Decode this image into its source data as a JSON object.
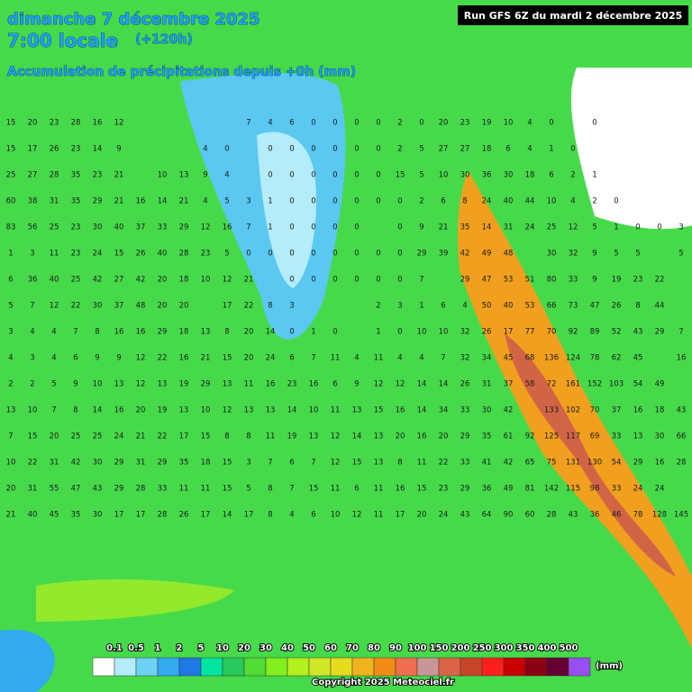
{
  "header": {
    "date": "dimanche 7 décembre 2025",
    "time": "7:00 locale",
    "lead": "(+120h)",
    "subtitle": "Accumulation de précipitations depuis +0h (mm)",
    "run": "Run GFS 6Z du mardi 2 décembre 2025"
  },
  "legend": {
    "labels": [
      "0.1",
      "0.5",
      "1",
      "2",
      "5",
      "10",
      "20",
      "30",
      "40",
      "50",
      "60",
      "70",
      "80",
      "90",
      "100",
      "150",
      "200",
      "250",
      "300",
      "350",
      "400",
      "500"
    ],
    "colors": [
      "#ffffff",
      "#b4ecfa",
      "#6ed2f5",
      "#32aaf0",
      "#1e78e6",
      "#00e6a0",
      "#28c85a",
      "#50dc32",
      "#82f01e",
      "#b4f01e",
      "#d2e628",
      "#e6dc1e",
      "#f0b41e",
      "#f08c14",
      "#f06e50",
      "#c89696",
      "#dc6446",
      "#c84628",
      "#ff1e1e",
      "#c80000",
      "#8c0014",
      "#640032",
      "#9650f0"
    ],
    "unit": "(mm)"
  },
  "grid": {
    "rows": [
      [
        15,
        20,
        23,
        28,
        16,
        12,
        null,
        null,
        null,
        null,
        null,
        7,
        4,
        6,
        0,
        0,
        0,
        0,
        2,
        0,
        20,
        23,
        19,
        10,
        4,
        0,
        null,
        0,
        null,
        null,
        null,
        null
      ],
      [
        15,
        17,
        26,
        23,
        14,
        9,
        null,
        null,
        null,
        4,
        0,
        null,
        0,
        0,
        0,
        0,
        0,
        0,
        2,
        5,
        27,
        27,
        18,
        6,
        4,
        1,
        0,
        null,
        null,
        null,
        null,
        null
      ],
      [
        25,
        27,
        28,
        35,
        23,
        21,
        null,
        10,
        13,
        9,
        4,
        null,
        0,
        0,
        0,
        0,
        0,
        0,
        15,
        5,
        10,
        30,
        36,
        30,
        18,
        6,
        2,
        1,
        null,
        null,
        null,
        null
      ],
      [
        60,
        38,
        31,
        35,
        29,
        21,
        16,
        14,
        21,
        4,
        5,
        3,
        1,
        0,
        0,
        0,
        0,
        0,
        0,
        2,
        6,
        8,
        24,
        40,
        44,
        10,
        4,
        2,
        0,
        null,
        null,
        null
      ],
      [
        83,
        56,
        25,
        23,
        30,
        40,
        37,
        33,
        29,
        12,
        16,
        7,
        1,
        0,
        0,
        0,
        0,
        null,
        0,
        9,
        21,
        35,
        14,
        31,
        24,
        25,
        12,
        5,
        1,
        0,
        0,
        3
      ],
      [
        1,
        3,
        11,
        23,
        24,
        15,
        26,
        40,
        28,
        23,
        5,
        0,
        0,
        0,
        0,
        0,
        0,
        0,
        0,
        29,
        39,
        42,
        49,
        48,
        null,
        30,
        32,
        9,
        5,
        5,
        null,
        5
      ],
      [
        6,
        36,
        40,
        25,
        42,
        27,
        42,
        20,
        18,
        10,
        12,
        21,
        null,
        0,
        0,
        0,
        0,
        0,
        0,
        7,
        null,
        29,
        47,
        53,
        51,
        80,
        33,
        9,
        19,
        23,
        22,
        null
      ],
      [
        5,
        7,
        12,
        22,
        30,
        37,
        48,
        20,
        20,
        null,
        17,
        22,
        8,
        3,
        null,
        null,
        null,
        2,
        3,
        1,
        6,
        4,
        50,
        40,
        53,
        66,
        73,
        47,
        26,
        8,
        44,
        null
      ],
      [
        3,
        4,
        4,
        7,
        8,
        16,
        16,
        29,
        18,
        13,
        8,
        20,
        14,
        0,
        1,
        0,
        null,
        1,
        0,
        10,
        10,
        32,
        26,
        17,
        77,
        70,
        92,
        89,
        52,
        43,
        29,
        7
      ],
      [
        4,
        3,
        4,
        6,
        9,
        9,
        12,
        22,
        16,
        21,
        15,
        20,
        24,
        6,
        7,
        11,
        4,
        11,
        4,
        4,
        7,
        32,
        34,
        45,
        68,
        136,
        124,
        78,
        62,
        45,
        null,
        16
      ],
      [
        2,
        2,
        5,
        9,
        10,
        13,
        12,
        13,
        19,
        29,
        13,
        11,
        16,
        23,
        16,
        6,
        9,
        12,
        12,
        14,
        14,
        26,
        31,
        37,
        58,
        72,
        161,
        152,
        103,
        54,
        49,
        null
      ],
      [
        13,
        10,
        7,
        8,
        14,
        16,
        20,
        19,
        13,
        10,
        12,
        13,
        13,
        14,
        10,
        11,
        13,
        15,
        16,
        14,
        34,
        33,
        30,
        42,
        null,
        133,
        102,
        70,
        37,
        16,
        18,
        43
      ],
      [
        7,
        15,
        20,
        25,
        25,
        24,
        21,
        22,
        17,
        15,
        8,
        8,
        11,
        19,
        13,
        12,
        14,
        13,
        20,
        16,
        20,
        29,
        35,
        61,
        92,
        125,
        117,
        69,
        33,
        13,
        30,
        66
      ],
      [
        10,
        22,
        31,
        42,
        30,
        29,
        31,
        29,
        35,
        18,
        15,
        3,
        7,
        6,
        7,
        12,
        15,
        13,
        8,
        11,
        22,
        33,
        41,
        42,
        65,
        75,
        131,
        130,
        54,
        29,
        16,
        28
      ],
      [
        20,
        31,
        55,
        47,
        43,
        29,
        28,
        33,
        11,
        11,
        15,
        5,
        8,
        7,
        15,
        11,
        6,
        11,
        16,
        15,
        23,
        29,
        36,
        49,
        81,
        142,
        115,
        98,
        33,
        24,
        24,
        null
      ],
      [
        21,
        40,
        45,
        35,
        30,
        17,
        17,
        28,
        26,
        17,
        14,
        17,
        8,
        4,
        6,
        10,
        12,
        11,
        17,
        20,
        24,
        43,
        64,
        90,
        60,
        28,
        43,
        36,
        46,
        78,
        128,
        145
      ]
    ]
  },
  "footer": {
    "copyright": "Copyright 2025 Meteociel.fr"
  }
}
